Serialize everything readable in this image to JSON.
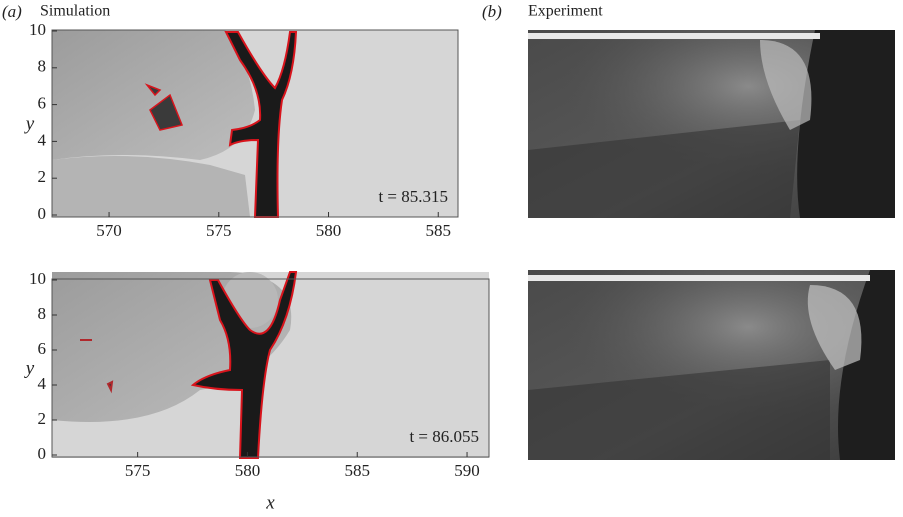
{
  "panels": [
    {
      "label": "(a)",
      "title": "Simulation"
    },
    {
      "label": "(b)",
      "title": "Experiment"
    }
  ],
  "chart_data": [
    {
      "type": "image",
      "ylabel": "y",
      "xlim": [
        567.4,
        585.9
      ],
      "xticks": [
        570,
        575,
        580,
        585
      ],
      "ylim": [
        0,
        10
      ],
      "yticks": [
        0,
        2,
        4,
        6,
        8,
        10
      ],
      "annotation": "t = 85.315"
    },
    {
      "type": "image",
      "ylabel": "y",
      "xlabel": "x",
      "xlim": [
        571.1,
        591
      ],
      "xticks": [
        575,
        580,
        585,
        590
      ],
      "ylim": [
        0,
        10
      ],
      "yticks": [
        0,
        2,
        4,
        6,
        8,
        10
      ],
      "annotation": "t = 86.055"
    }
  ]
}
